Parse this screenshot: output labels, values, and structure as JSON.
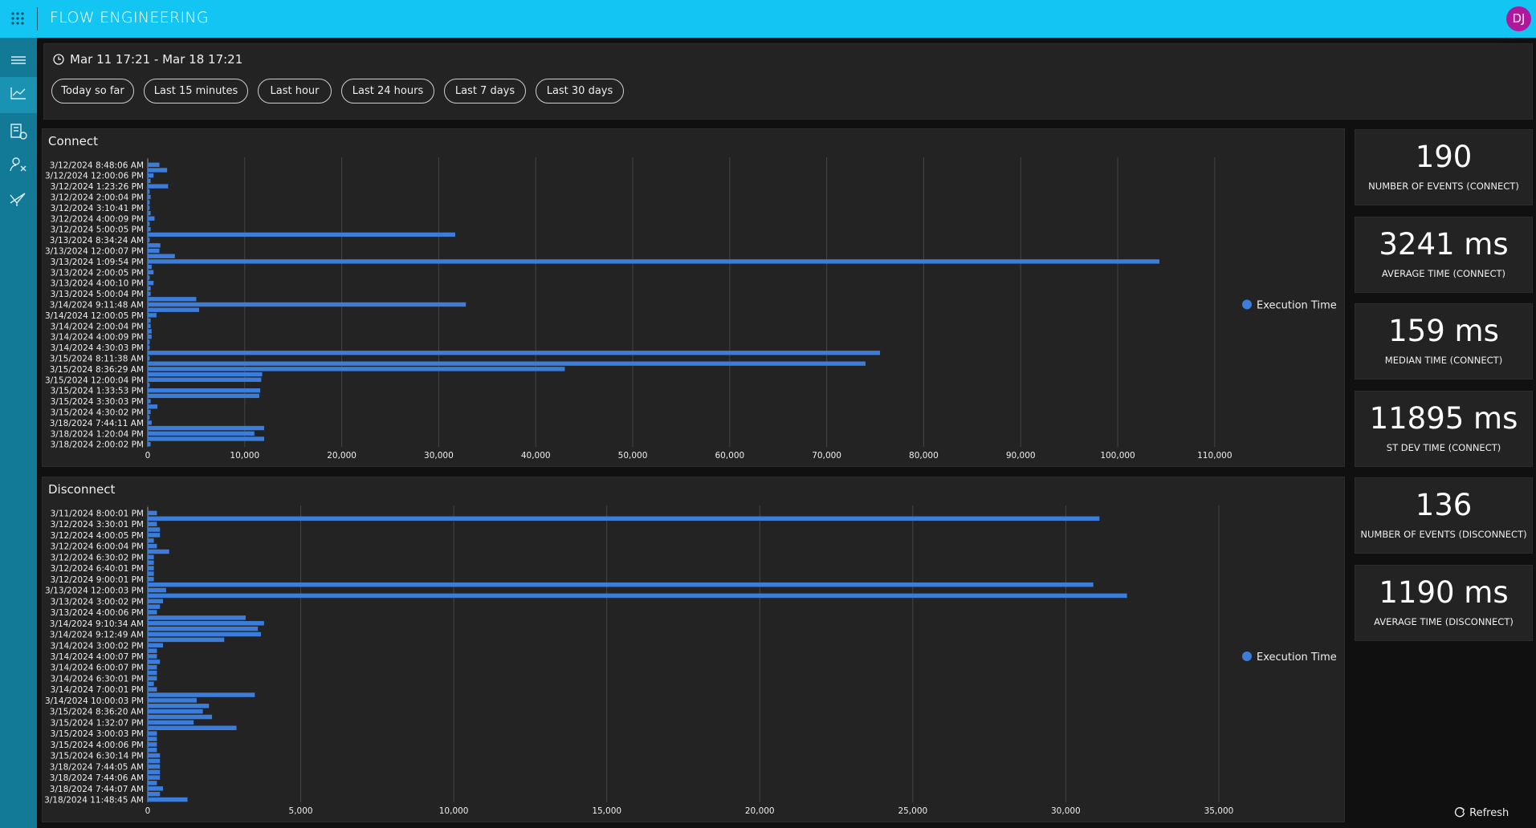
{
  "header": {
    "title": "FLOW ENGINEERING",
    "avatar": "DJ"
  },
  "time_range": {
    "label": "Mar 11 17:21 - Mar 18 17:21",
    "buttons": [
      "Today so far",
      "Last 15 minutes",
      "Last hour",
      "Last 24 hours",
      "Last 7 days",
      "Last 30 days"
    ]
  },
  "chart_data": [
    {
      "type": "bar",
      "orientation": "horizontal",
      "title": "Connect",
      "color": "#3b7dd8",
      "legend": "right",
      "grid": true,
      "series": [
        {
          "name": "Execution Time",
          "color": "#3b7dd8",
          "values": [
            1200,
            2000,
            600,
            300,
            2100,
            200,
            300,
            200,
            200,
            300,
            700,
            200,
            300,
            31700,
            200,
            1300,
            1200,
            2800,
            104300,
            400,
            600,
            200,
            600,
            300,
            300,
            5000,
            32800,
            5300,
            900,
            300,
            300,
            400,
            400,
            200,
            200,
            75500,
            200,
            74000,
            43000,
            11800,
            11700,
            200,
            11600,
            11500,
            300,
            1000,
            300,
            200,
            400,
            12000,
            11000,
            12000,
            300
          ]
        }
      ],
      "categories": [
        "3/12/2024 8:48:06 AM",
        null,
        "3/12/2024 12:00:06 PM",
        null,
        "3/12/2024 1:23:26 PM",
        null,
        "3/12/2024 2:00:04 PM",
        null,
        "3/12/2024 3:10:41 PM",
        null,
        "3/12/2024 4:00:09 PM",
        null,
        "3/12/2024 5:00:05 PM",
        null,
        "3/13/2024 8:34:24 AM",
        null,
        "3/13/2024 12:00:07 PM",
        null,
        "3/13/2024 1:09:54 PM",
        null,
        "3/13/2024 2:00:05 PM",
        null,
        "3/13/2024 4:00:10 PM",
        null,
        "3/13/2024 5:00:04 PM",
        null,
        "3/14/2024 9:11:48 AM",
        null,
        "3/14/2024 12:00:05 PM",
        null,
        "3/14/2024 2:00:04 PM",
        null,
        "3/14/2024 4:00:09 PM",
        null,
        "3/14/2024 4:30:03 PM",
        null,
        "3/15/2024 8:11:38 AM",
        null,
        "3/15/2024 8:36:29 AM",
        null,
        "3/15/2024 12:00:04 PM",
        null,
        "3/15/2024 1:33:53 PM",
        null,
        "3/15/2024 3:30:03 PM",
        null,
        "3/15/2024 4:30:02 PM",
        null,
        "3/18/2024 7:44:11 AM",
        null,
        "3/18/2024 1:20:04 PM",
        null,
        "3/18/2024 2:00:02 PM"
      ],
      "xlim": [
        0,
        112000
      ],
      "xticks": [
        0,
        {
          "value": 10000,
          "label": "10,000"
        },
        {
          "value": 20000,
          "label": "20,000"
        },
        {
          "value": 30000,
          "label": "30,000"
        },
        {
          "value": 40000,
          "label": "40,000"
        },
        {
          "value": 50000,
          "label": "50,000"
        },
        {
          "value": 60000,
          "label": "60,000"
        },
        {
          "value": 70000,
          "label": "70,000"
        },
        {
          "value": 80000,
          "label": "80,000"
        },
        {
          "value": 90000,
          "label": "90,000"
        },
        {
          "value": 100000,
          "label": "100,000"
        },
        {
          "value": 110000,
          "label": "110,000"
        }
      ]
    },
    {
      "type": "bar",
      "orientation": "horizontal",
      "title": "Disconnect",
      "color": "#3b7dd8",
      "legend": "right",
      "grid": true,
      "series": [
        {
          "name": "Execution Time",
          "color": "#3b7dd8",
          "values": [
            300,
            31100,
            300,
            400,
            400,
            200,
            300,
            700,
            200,
            200,
            200,
            200,
            200,
            30900,
            600,
            32000,
            500,
            400,
            300,
            3200,
            3800,
            3600,
            3700,
            2500,
            500,
            300,
            300,
            400,
            300,
            300,
            300,
            200,
            300,
            3500,
            1600,
            2000,
            1800,
            2100,
            1500,
            2900,
            300,
            300,
            300,
            300,
            400,
            400,
            400,
            400,
            400,
            300,
            500,
            400,
            1300
          ]
        }
      ],
      "categories": [
        "3/11/2024 8:00:01 PM",
        null,
        "3/12/2024 3:30:01 PM",
        null,
        "3/12/2024 4:00:05 PM",
        null,
        "3/12/2024 6:00:04 PM",
        null,
        "3/12/2024 6:30:02 PM",
        null,
        "3/12/2024 6:40:01 PM",
        null,
        "3/12/2024 9:00:01 PM",
        null,
        "3/13/2024 12:00:03 PM",
        null,
        "3/13/2024 3:00:02 PM",
        null,
        "3/13/2024 4:00:06 PM",
        null,
        "3/14/2024 9:10:34 AM",
        null,
        "3/14/2024 9:12:49 AM",
        null,
        "3/14/2024 3:00:02 PM",
        null,
        "3/14/2024 4:00:07 PM",
        null,
        "3/14/2024 6:00:07 PM",
        null,
        "3/14/2024 6:30:01 PM",
        null,
        "3/14/2024 7:00:01 PM",
        null,
        "3/14/2024 10:00:03 PM",
        null,
        "3/15/2024 8:36:20 AM",
        null,
        "3/15/2024 1:32:07 PM",
        null,
        "3/15/2024 3:00:03 PM",
        null,
        "3/15/2024 4:00:06 PM",
        null,
        "3/15/2024 6:30:14 PM",
        null,
        "3/18/2024 7:44:05 AM",
        null,
        "3/18/2024 7:44:06 AM",
        null,
        "3/18/2024 7:44:07 AM",
        null,
        "3/18/2024 11:48:45 AM"
      ],
      "xlim": [
        0,
        35500
      ],
      "xticks": [
        0,
        {
          "value": 5000,
          "label": "5,000"
        },
        {
          "value": 10000,
          "label": "10,000"
        },
        {
          "value": 15000,
          "label": "15,000"
        },
        {
          "value": 20000,
          "label": "20,000"
        },
        {
          "value": 25000,
          "label": "25,000"
        },
        {
          "value": 30000,
          "label": "30,000"
        },
        {
          "value": 35000,
          "label": "35,000"
        }
      ]
    }
  ],
  "stats": [
    {
      "value": "190",
      "label": "NUMBER OF EVENTS (CONNECT)"
    },
    {
      "value": "3241 ms",
      "label": "AVERAGE TIME (CONNECT)"
    },
    {
      "value": "159 ms",
      "label": "MEDIAN TIME (CONNECT)"
    },
    {
      "value": "11895 ms",
      "label": "ST DEV TIME (CONNECT)"
    },
    {
      "value": "136",
      "label": "NUMBER OF EVENTS (DISCONNECT)"
    },
    {
      "value": "1190 ms",
      "label": "AVERAGE TIME (DISCONNECT)"
    }
  ],
  "refresh": "Refresh"
}
